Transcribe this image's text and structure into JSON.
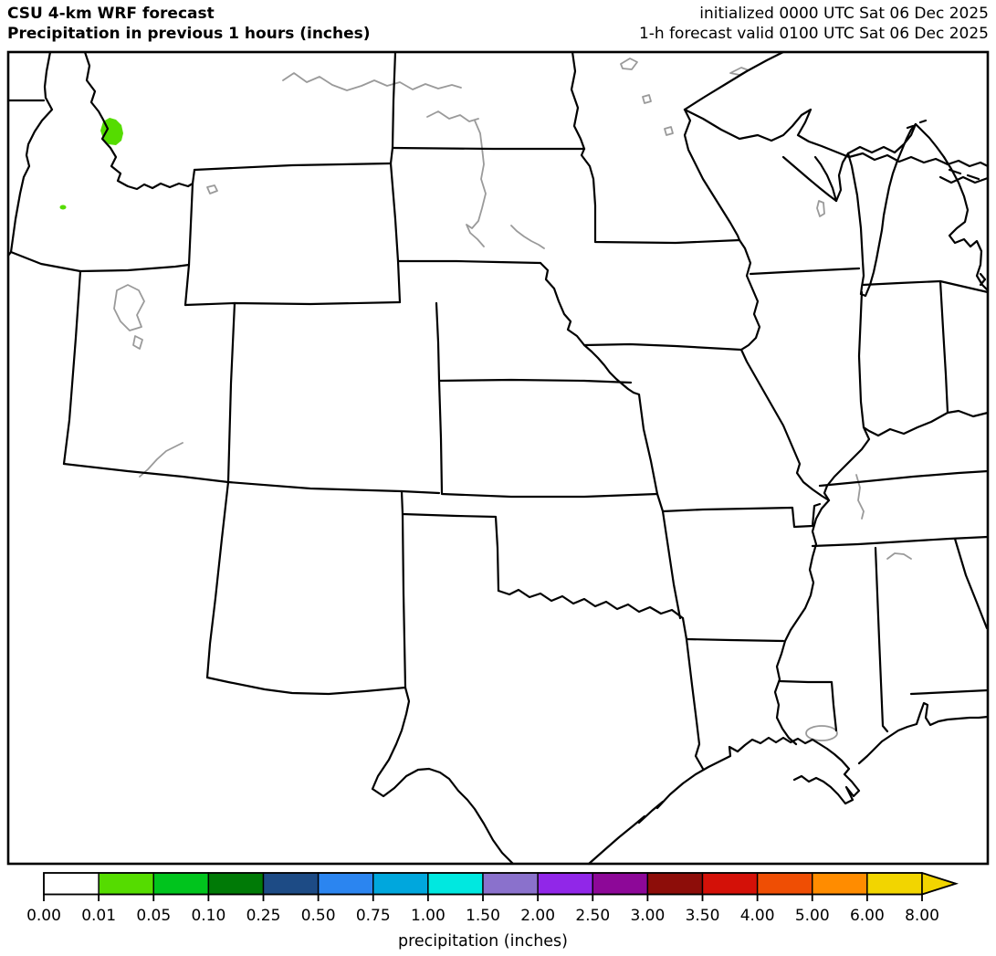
{
  "header": {
    "title_line1": "CSU 4-km WRF forecast",
    "title_line2": "Precipitation in previous 1 hours (inches)",
    "init_line": "initialized 0000 UTC Sat 06 Dec 2025",
    "valid_line": "1-h forecast valid 0100 UTC Sat 06 Dec 2025"
  },
  "colorbar": {
    "caption": "precipitation (inches)",
    "tick_labels": [
      "0.00",
      "0.01",
      "0.05",
      "0.10",
      "0.25",
      "0.50",
      "0.75",
      "1.00",
      "1.50",
      "2.00",
      "2.50",
      "3.00",
      "3.50",
      "4.00",
      "5.00",
      "6.00",
      "8.00"
    ],
    "colors": [
      "#ffffff",
      "#55dc00",
      "#00c41d",
      "#007a06",
      "#1d4b85",
      "#2b85f0",
      "#00a7dd",
      "#00e8e0",
      "#8a71cc",
      "#9127e8",
      "#8d0898",
      "#8d0d09",
      "#d41108",
      "#ef4e04",
      "#ff8c00",
      "#f2d500"
    ],
    "arrow_color": "#f2d500",
    "outline_color": "#000000"
  },
  "map": {
    "background_color": "#ffffff",
    "boundary_color": "#000000",
    "water_color": "#9a9a9a",
    "precip_patches": [
      {
        "name": "idaho-montana-border-patch",
        "value_range": "0.01-0.05",
        "color": "#55dc00"
      },
      {
        "name": "southwest-idaho-dot",
        "value_range": "0.01-0.05",
        "color": "#55dc00"
      }
    ]
  }
}
